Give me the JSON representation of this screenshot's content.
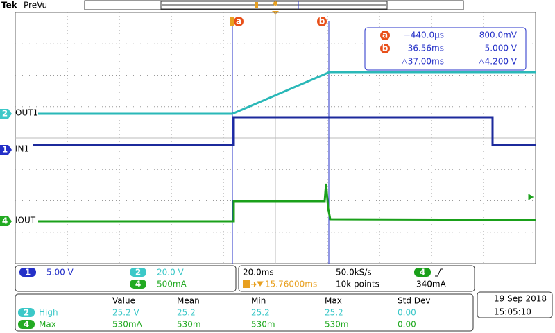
{
  "header": {
    "brand": "Tek",
    "mode": "PreVu"
  },
  "cursors": {
    "a": {
      "label": "a",
      "time": "−440.0µs",
      "level": "800.0mV"
    },
    "b": {
      "label": "b",
      "time": "36.56ms",
      "level": "5.000 V"
    },
    "delta": {
      "time": "△37.00ms",
      "level": "△4.200 V"
    }
  },
  "channels": [
    {
      "number": "2",
      "label": "OUT1"
    },
    {
      "number": "1",
      "label": "IN1"
    },
    {
      "number": "4",
      "label": "IOUT"
    }
  ],
  "scales": [
    {
      "number": "1",
      "value": "5.00 V"
    },
    {
      "number": "2",
      "value": "20.0 V"
    },
    {
      "number": "4",
      "value": "500mA"
    }
  ],
  "horizontal": {
    "time_div": "20.0ms",
    "sample_rate": "50.0kS/s",
    "trigger_delay": "15.76000ms",
    "record_length": "10k points",
    "trigger_channel": "4",
    "trigger_level": "340mA"
  },
  "measurements": {
    "columns": [
      "Value",
      "Mean",
      "Min",
      "Max",
      "Std Dev"
    ],
    "rows": [
      {
        "channel": "2",
        "name": "High",
        "cells": [
          "25.2 V",
          "25.2",
          "25.2",
          "25.2",
          "0.00"
        ]
      },
      {
        "channel": "4",
        "name": "Max",
        "cells": [
          "530mA",
          "530m",
          "530m",
          "530m",
          "0.00"
        ]
      }
    ]
  },
  "datetime": {
    "date": "19 Sep 2018",
    "time": "15:05:10"
  }
}
